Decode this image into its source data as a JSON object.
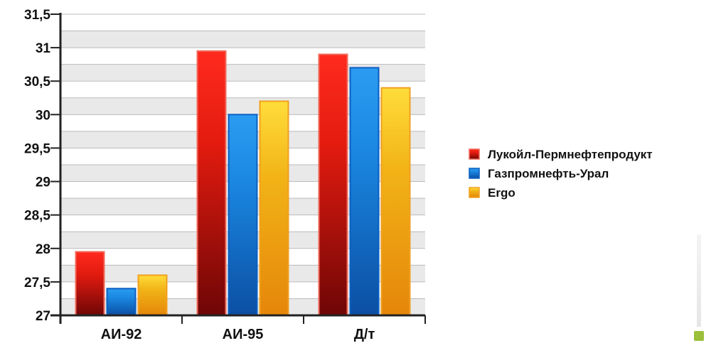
{
  "chart_data": {
    "type": "bar",
    "categories": [
      "АИ-92",
      "АИ-95",
      "Д/т"
    ],
    "series": [
      {
        "name": "Лукойл-Пермнефтепродукт",
        "values": [
          27.95,
          30.95,
          30.9
        ]
      },
      {
        "name": "Газпромнефть-Урал",
        "values": [
          27.4,
          30.0,
          30.7
        ]
      },
      {
        "name": "Ergo",
        "values": [
          27.6,
          30.2,
          30.4
        ]
      }
    ],
    "ylim": [
      27,
      31.5
    ],
    "yticks": [
      "27",
      "27,5",
      "28",
      "28,5",
      "29",
      "29,5",
      "30",
      "30,5",
      "31",
      "31,5"
    ],
    "ytick_values": [
      27,
      27.5,
      28,
      28.5,
      29,
      29.5,
      30,
      30.5,
      31,
      31.5
    ],
    "grid": true,
    "grid_step": 0.25,
    "legend_position": "right",
    "colors": {
      "series": [
        "#e31b0f",
        "#1a86e0",
        "#f2b417"
      ],
      "series_dark": [
        "#6e0606",
        "#0b4fa3",
        "#e5860a"
      ],
      "series_light": [
        "#ff2a1e",
        "#2b9cf2",
        "#ffdd3a"
      ],
      "borders": [
        "#f26a5a",
        "#0a5fc2",
        "#f0a020"
      ],
      "grid_band": "#e9e9e9",
      "grid_line": "#bbbbbb",
      "axis": "#222222"
    }
  }
}
